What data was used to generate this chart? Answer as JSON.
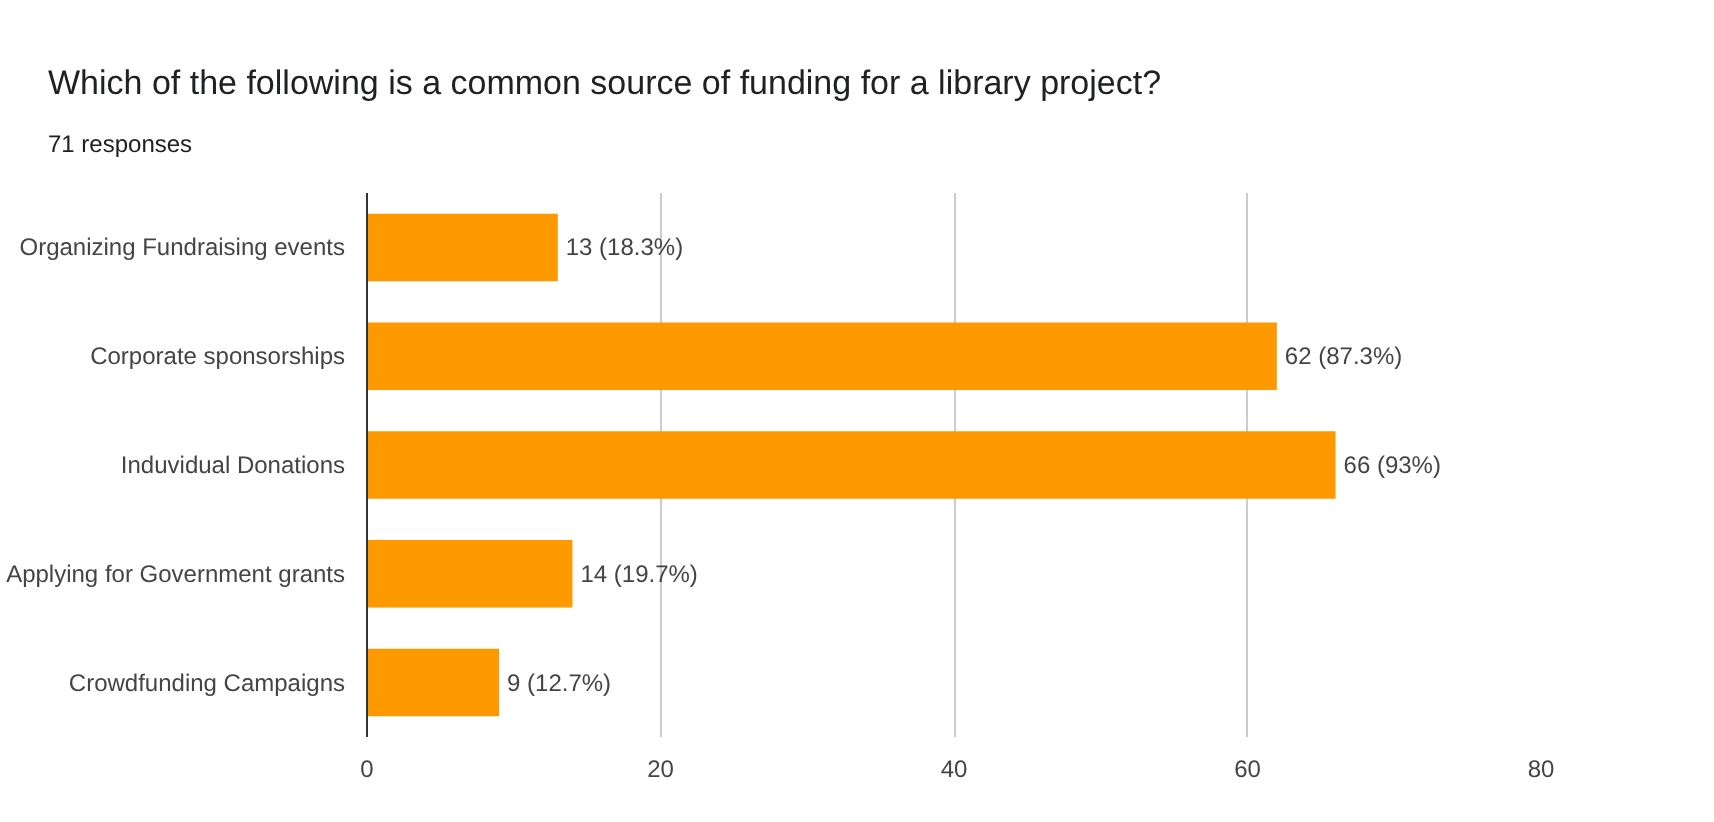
{
  "chart_data": {
    "type": "bar",
    "orientation": "horizontal",
    "title": "Which of the following is a common source of funding for a library project?",
    "subtitle": "71 responses",
    "categories": [
      "Organizing Fundraising events",
      "Corporate sponsorships",
      "Induvidual Donations",
      "Applying for Government grants",
      "Crowdfunding Campaigns"
    ],
    "values": [
      13,
      62,
      66,
      14,
      9
    ],
    "value_labels": [
      "13 (18.3%)",
      "62 (87.3%)",
      "66 (93%)",
      "14 (19.7%)",
      "9 (12.7%)"
    ],
    "color": "#ff9900",
    "xlim": [
      0,
      80
    ],
    "xticks": [
      0,
      20,
      40,
      60,
      80
    ],
    "grid": "x"
  }
}
